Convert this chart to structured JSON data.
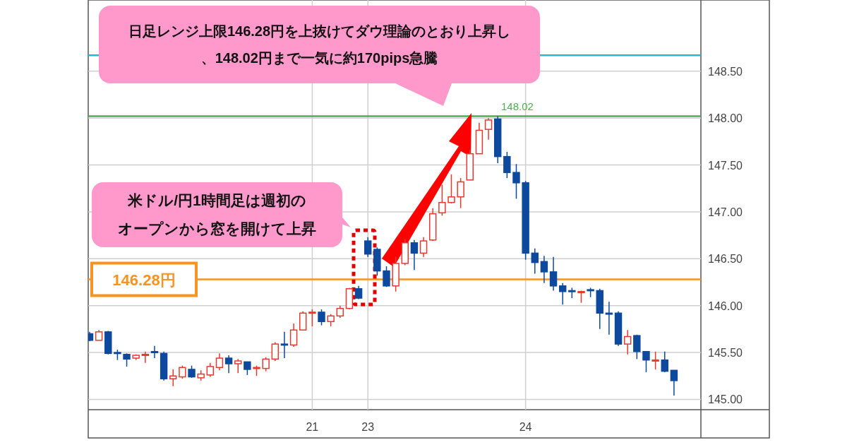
{
  "chart_data": {
    "type": "candlestick",
    "annotations": [
      "日足レンジ上限146.28円を上抜けてダウ理論のとおり上昇し、148.02円まで一気に約170pips急騰",
      "米ドル/円1時間足は週初のオープンから窓を開けて上昇"
    ],
    "categories": [
      null,
      null,
      null,
      null,
      null,
      null,
      null,
      null,
      null,
      null,
      null,
      null,
      null,
      null,
      null,
      null,
      null,
      null,
      null,
      null,
      null,
      null,
      null,
      null,
      "21",
      null,
      null,
      null,
      null,
      null,
      "23",
      null,
      null,
      null,
      null,
      null,
      null,
      null,
      null,
      null,
      null,
      null,
      null,
      null,
      null,
      null,
      null,
      "24",
      null,
      null,
      null,
      null,
      null,
      null,
      null,
      null,
      null,
      null,
      null,
      null,
      null,
      null,
      null,
      null
    ],
    "ohlc": [
      [
        145.7,
        145.72,
        145.62,
        145.63
      ],
      [
        145.63,
        145.74,
        145.63,
        145.72
      ],
      [
        145.72,
        145.73,
        145.48,
        145.49
      ],
      [
        145.5,
        145.53,
        145.42,
        145.49
      ],
      [
        145.48,
        145.49,
        145.35,
        145.43
      ],
      [
        145.44,
        145.48,
        145.42,
        145.47
      ],
      [
        145.47,
        145.51,
        145.39,
        145.48
      ],
      [
        145.51,
        145.57,
        145.44,
        145.5
      ],
      [
        145.49,
        145.51,
        145.2,
        145.22
      ],
      [
        145.22,
        145.32,
        145.14,
        145.25
      ],
      [
        145.24,
        145.36,
        145.22,
        145.34
      ],
      [
        145.32,
        145.36,
        145.23,
        145.24
      ],
      [
        145.23,
        145.31,
        145.2,
        145.27
      ],
      [
        145.26,
        145.39,
        145.24,
        145.35
      ],
      [
        145.34,
        145.49,
        145.31,
        145.44
      ],
      [
        145.44,
        145.47,
        145.28,
        145.38
      ],
      [
        145.38,
        145.43,
        145.28,
        145.41
      ],
      [
        145.4,
        145.4,
        145.26,
        145.32
      ],
      [
        145.33,
        145.36,
        145.25,
        145.34
      ],
      [
        145.33,
        145.45,
        145.3,
        145.43
      ],
      [
        145.43,
        145.61,
        145.41,
        145.59
      ],
      [
        145.59,
        145.72,
        145.44,
        145.58
      ],
      [
        145.58,
        145.81,
        145.56,
        145.74
      ],
      [
        145.74,
        145.94,
        145.74,
        145.92
      ],
      [
        145.92,
        145.96,
        145.78,
        145.93
      ],
      [
        145.93,
        145.96,
        145.79,
        145.83
      ],
      [
        145.83,
        145.91,
        145.78,
        145.89
      ],
      [
        145.89,
        146.0,
        145.87,
        145.97
      ],
      [
        145.97,
        146.19,
        145.96,
        146.18
      ],
      [
        146.18,
        146.21,
        146.07,
        146.08
      ],
      [
        146.69,
        146.73,
        146.52,
        146.55
      ],
      [
        146.6,
        146.62,
        146.32,
        146.37
      ],
      [
        146.37,
        146.42,
        146.2,
        146.21
      ],
      [
        146.21,
        146.52,
        146.15,
        146.45
      ],
      [
        146.45,
        146.71,
        146.43,
        146.67
      ],
      [
        146.67,
        146.7,
        146.38,
        146.56
      ],
      [
        146.56,
        146.73,
        146.52,
        146.69
      ],
      [
        146.7,
        147.04,
        146.69,
        146.98
      ],
      [
        146.99,
        147.29,
        146.96,
        147.1
      ],
      [
        147.1,
        147.4,
        147.09,
        147.16
      ],
      [
        147.16,
        147.36,
        147.04,
        147.32
      ],
      [
        147.34,
        147.66,
        147.34,
        147.62
      ],
      [
        147.62,
        147.95,
        147.62,
        147.87
      ],
      [
        147.88,
        148.0,
        147.77,
        147.98
      ],
      [
        147.99,
        148.02,
        147.52,
        147.59
      ],
      [
        147.59,
        147.64,
        147.36,
        147.42
      ],
      [
        147.42,
        147.51,
        147.14,
        147.31
      ],
      [
        147.31,
        147.33,
        146.49,
        146.56
      ],
      [
        146.56,
        146.61,
        146.34,
        146.46
      ],
      [
        146.47,
        146.53,
        146.24,
        146.36
      ],
      [
        146.36,
        146.52,
        146.16,
        146.21
      ],
      [
        146.21,
        146.24,
        146.01,
        146.15
      ],
      [
        146.16,
        146.19,
        146.08,
        146.15
      ],
      [
        146.14,
        146.16,
        146.03,
        146.15
      ],
      [
        146.17,
        146.19,
        146.09,
        146.16
      ],
      [
        146.16,
        146.18,
        145.75,
        145.92
      ],
      [
        145.92,
        146.04,
        145.69,
        145.91
      ],
      [
        145.92,
        145.94,
        145.57,
        145.59
      ],
      [
        145.59,
        145.74,
        145.48,
        145.67
      ],
      [
        145.68,
        145.69,
        145.43,
        145.51
      ],
      [
        145.51,
        145.51,
        145.29,
        145.42
      ],
      [
        145.41,
        145.51,
        145.32,
        145.42
      ],
      [
        145.42,
        145.51,
        145.29,
        145.3
      ],
      [
        145.31,
        145.31,
        145.04,
        145.2
      ]
    ],
    "ylim": [
      144.89,
      149.26
    ],
    "yticks": [
      {
        "value": 145,
        "label": "145.00"
      },
      {
        "value": 145.5,
        "label": "145.50"
      },
      {
        "value": 146,
        "label": "146.00"
      },
      {
        "value": 146.5,
        "label": "146.50"
      },
      {
        "value": 147,
        "label": "147.00"
      },
      {
        "value": 147.5,
        "label": "147.50"
      },
      {
        "value": 148,
        "label": "148.00"
      },
      {
        "value": 148.5,
        "label": "148.50"
      }
    ],
    "ref_lines": [
      {
        "axis": "y",
        "value": 148.67,
        "color": "#29b6c6"
      },
      {
        "axis": "y",
        "value": 148.02,
        "label": "148.02",
        "color": "#4caf50"
      },
      {
        "axis": "y",
        "value": 146.28,
        "label": "146.28円",
        "color": "#f7931e"
      }
    ],
    "grid": true
  }
}
